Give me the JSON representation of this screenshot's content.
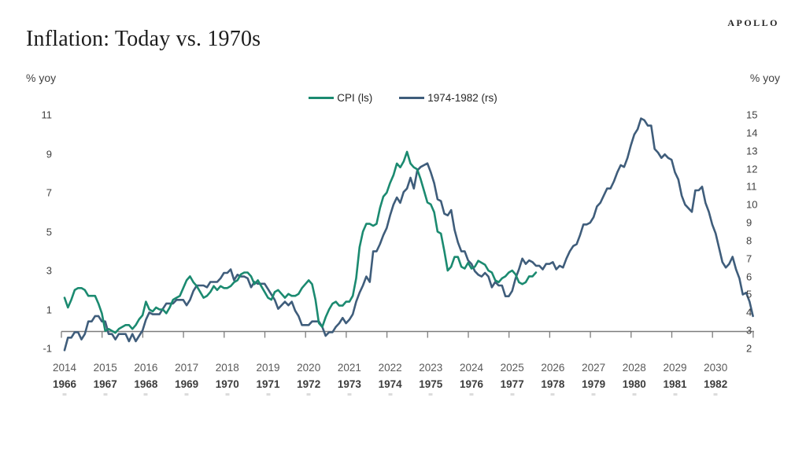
{
  "header": {
    "brand": "APOLLO",
    "title": "Inflation: Today vs. 1970s"
  },
  "axis_units": {
    "left": "% yoy",
    "right": "% yoy"
  },
  "legend": {
    "items": [
      {
        "label": "CPI (ls)"
      },
      {
        "label": "1974-1982 (rs)"
      }
    ]
  },
  "chart_data": {
    "type": "line",
    "title": "Inflation: Today vs. 1970s",
    "grid": "off",
    "legend_position": "top-center",
    "left_axis": {
      "label": "% yoy",
      "min": -1,
      "max": 11,
      "ticks": [
        11,
        9,
        7,
        5,
        3,
        1,
        -1
      ]
    },
    "right_axis": {
      "label": "% yoy",
      "min": 2,
      "max": 15,
      "ticks": [
        15,
        14,
        13,
        12,
        11,
        10,
        9,
        8,
        7,
        6,
        5,
        4,
        3,
        2
      ]
    },
    "x_axis": {
      "top_labels": [
        "2014",
        "2015",
        "2016",
        "2017",
        "2018",
        "2019",
        "2020",
        "2021",
        "2022",
        "2023",
        "2024",
        "2025",
        "2026",
        "2027",
        "2028",
        "2029",
        "2030"
      ],
      "bottom_labels": [
        "1966",
        "1967",
        "1968",
        "1969",
        "1970",
        "1971",
        "1972",
        "1973",
        "1974",
        "1975",
        "1976",
        "1977",
        "1978",
        "1979",
        "1980",
        "1981",
        "1982"
      ]
    },
    "series": [
      {
        "name": "CPI (ls)",
        "axis": "left",
        "color": "#1b8a70",
        "start": "2014-01",
        "frequency": "monthly",
        "values": [
          1.6,
          1.1,
          1.5,
          2.0,
          2.1,
          2.1,
          2.0,
          1.7,
          1.7,
          1.7,
          1.3,
          0.8,
          -0.1,
          0.0,
          -0.1,
          -0.2,
          0.0,
          0.1,
          0.2,
          0.2,
          0.0,
          0.2,
          0.5,
          0.7,
          1.4,
          1.0,
          0.9,
          1.1,
          1.0,
          1.0,
          0.8,
          1.1,
          1.5,
          1.6,
          1.7,
          2.1,
          2.5,
          2.7,
          2.4,
          2.2,
          1.9,
          1.6,
          1.7,
          1.9,
          2.2,
          2.0,
          2.2,
          2.1,
          2.1,
          2.2,
          2.4,
          2.5,
          2.8,
          2.9,
          2.9,
          2.7,
          2.3,
          2.5,
          2.2,
          1.9,
          1.6,
          1.5,
          1.9,
          2.0,
          1.8,
          1.6,
          1.8,
          1.7,
          1.7,
          1.8,
          2.1,
          2.3,
          2.5,
          2.3,
          1.5,
          0.3,
          0.1,
          0.6,
          1.0,
          1.3,
          1.4,
          1.2,
          1.2,
          1.4,
          1.4,
          1.7,
          2.6,
          4.2,
          5.0,
          5.4,
          5.4,
          5.3,
          5.4,
          6.2,
          6.8,
          7.0,
          7.5,
          7.9,
          8.5,
          8.3,
          8.6,
          9.1,
          8.5,
          8.3,
          8.2,
          7.7,
          7.1,
          6.5,
          6.4,
          6.0,
          5.0,
          4.9,
          4.0,
          3.0,
          3.2,
          3.7,
          3.7,
          3.2,
          3.1,
          3.4,
          3.1,
          3.2,
          3.5,
          3.4,
          3.3,
          3.0,
          2.9,
          2.5,
          2.4,
          2.6,
          2.7,
          2.9,
          3.0,
          2.8,
          2.4,
          2.3,
          2.4,
          2.7,
          2.7,
          2.9
        ]
      },
      {
        "name": "1974-1982 (rs)",
        "axis": "right",
        "color": "#3f5d7b",
        "start": "1966-01",
        "frequency": "monthly",
        "values": [
          1.9,
          2.6,
          2.6,
          2.9,
          2.9,
          2.5,
          2.8,
          3.5,
          3.5,
          3.8,
          3.8,
          3.5,
          3.5,
          2.8,
          2.8,
          2.5,
          2.8,
          2.8,
          2.8,
          2.4,
          2.8,
          2.4,
          2.7,
          3.0,
          3.6,
          4.0,
          3.9,
          3.9,
          3.9,
          4.2,
          4.5,
          4.5,
          4.5,
          4.7,
          4.7,
          4.7,
          4.4,
          4.7,
          5.2,
          5.5,
          5.5,
          5.5,
          5.4,
          5.7,
          5.7,
          5.7,
          5.9,
          6.2,
          6.2,
          6.4,
          5.8,
          6.1,
          6.0,
          6.0,
          5.9,
          5.4,
          5.7,
          5.6,
          5.6,
          5.6,
          5.3,
          5.0,
          4.7,
          4.2,
          4.4,
          4.6,
          4.4,
          4.6,
          4.1,
          3.8,
          3.3,
          3.3,
          3.3,
          3.5,
          3.5,
          3.5,
          3.2,
          2.7,
          2.9,
          2.9,
          3.2,
          3.4,
          3.7,
          3.4,
          3.6,
          3.9,
          4.6,
          5.1,
          5.5,
          6.0,
          5.7,
          7.4,
          7.4,
          7.8,
          8.3,
          8.7,
          9.4,
          10.0,
          10.4,
          10.1,
          10.7,
          10.9,
          11.5,
          10.9,
          11.9,
          12.1,
          12.2,
          12.3,
          11.8,
          11.2,
          10.3,
          10.2,
          9.5,
          9.4,
          9.7,
          8.6,
          7.9,
          7.4,
          7.4,
          6.9,
          6.7,
          6.3,
          6.1,
          6.0,
          6.2,
          6.0,
          5.4,
          5.7,
          5.5,
          5.5,
          4.9,
          4.9,
          5.2,
          5.9,
          6.4,
          7.0,
          6.7,
          6.9,
          6.8,
          6.6,
          6.6,
          6.4,
          6.7,
          6.7,
          6.8,
          6.4,
          6.6,
          6.5,
          7.0,
          7.4,
          7.7,
          7.8,
          8.3,
          8.9,
          8.9,
          9.0,
          9.3,
          9.9,
          10.1,
          10.5,
          10.9,
          10.9,
          11.3,
          11.8,
          12.2,
          12.1,
          12.6,
          13.3,
          13.9,
          14.2,
          14.8,
          14.7,
          14.4,
          14.4,
          13.1,
          12.9,
          12.6,
          12.8,
          12.6,
          12.5,
          11.8,
          11.4,
          10.5,
          10.0,
          9.8,
          9.6,
          10.8,
          10.8,
          11.0,
          10.1,
          9.6,
          8.9,
          8.4,
          7.6,
          6.8,
          6.5,
          6.7,
          7.1,
          6.4,
          5.9,
          5.0,
          5.1,
          4.6,
          3.8
        ]
      }
    ]
  },
  "geometry_note": ""
}
